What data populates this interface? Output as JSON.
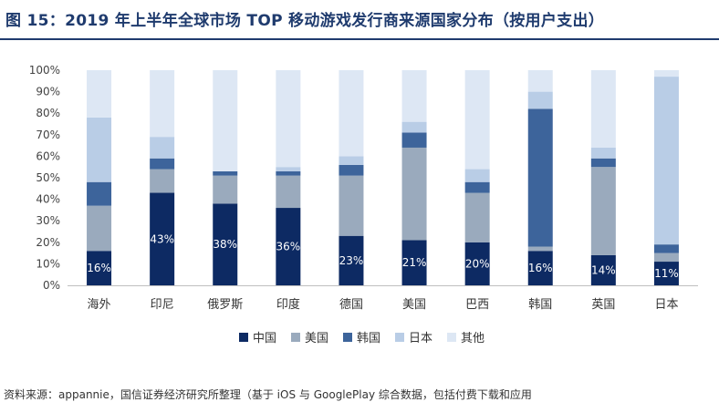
{
  "figure_title": "图 15：2019 年上半年全球市场 TOP 移动游戏发行商来源国家分布（按用户支出）",
  "source_note": "资料来源：appannie，国信证券经济研究所整理（基于 iOS 与 GooglePlay 综合数据，包括付费下载和应用",
  "colors": {
    "中国": "#0d2a63",
    "美国": "#9aaabd",
    "韩国": "#3d649b",
    "日本": "#b9cde6",
    "其他": "#dde7f4",
    "title": "#1f3b6e"
  },
  "chart_data": {
    "type": "bar",
    "stacked": true,
    "percent_axis": true,
    "categories": [
      "海外",
      "印尼",
      "俄罗斯",
      "印度",
      "德国",
      "美国",
      "巴西",
      "韩国",
      "英国",
      "日本"
    ],
    "series": [
      {
        "name": "中国",
        "values": [
          16,
          43,
          38,
          36,
          23,
          21,
          20,
          16,
          14,
          11
        ]
      },
      {
        "name": "美国",
        "values": [
          21,
          11,
          13,
          15,
          28,
          43,
          23,
          2,
          41,
          4
        ]
      },
      {
        "name": "韩国",
        "values": [
          11,
          5,
          2,
          2,
          5,
          7,
          5,
          64,
          4,
          4
        ]
      },
      {
        "name": "日本",
        "values": [
          30,
          10,
          0,
          2,
          4,
          5,
          6,
          8,
          5,
          78
        ]
      },
      {
        "name": "其他",
        "values": [
          22,
          31,
          47,
          45,
          40,
          24,
          46,
          10,
          36,
          3
        ]
      }
    ],
    "data_labels": [
      "16%",
      "43%",
      "38%",
      "36%",
      "23%",
      "21%",
      "20%",
      "16%",
      "14%",
      "11%"
    ],
    "y_ticks": [
      "0%",
      "10%",
      "20%",
      "30%",
      "40%",
      "50%",
      "60%",
      "70%",
      "80%",
      "90%",
      "100%"
    ],
    "ylim": [
      0,
      100
    ],
    "grid": false,
    "legend_position": "bottom"
  }
}
